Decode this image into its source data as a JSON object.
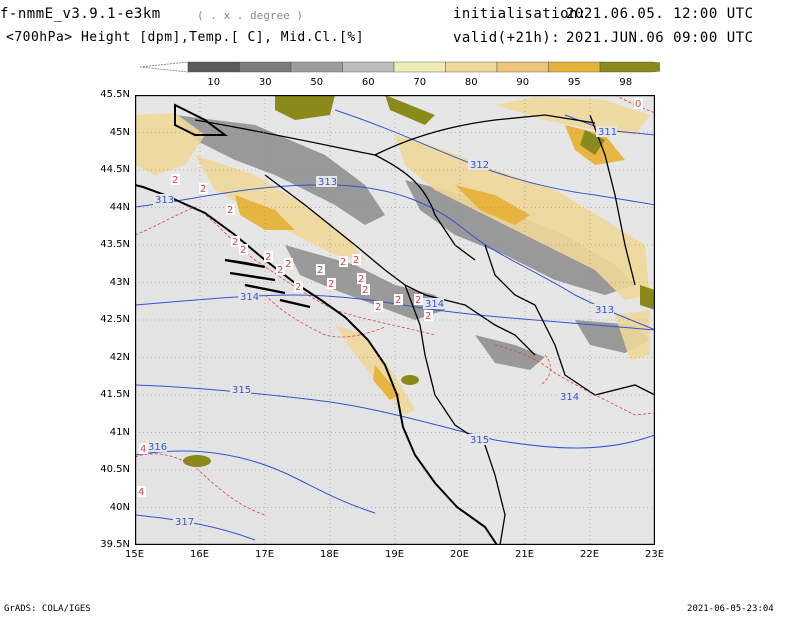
{
  "header": {
    "model_name": "f-nmmE_v3.9.1-e3km",
    "projection": "( . x . degree )",
    "variables": "<700hPa> Height [dpm],Temp.[ C], Mid.Cl.[%]",
    "init_label": "initialisation:",
    "init_time": "2021.06.05.  12:00 UTC",
    "valid_label": "valid(+21h):",
    "valid_time": "2021.JUN.06 09:00 UTC"
  },
  "colorbar": {
    "levels": [
      "10",
      "30",
      "50",
      "60",
      "70",
      "80",
      "90",
      "95",
      "98"
    ],
    "colors": [
      "#5a5a5a",
      "#7c7c7c",
      "#9e9e9e",
      "#bdbdbd",
      "#f0ecb8",
      "#efd89a",
      "#ecc57a",
      "#e6b33a",
      "#8a8a1a"
    ]
  },
  "map": {
    "lat_labels": [
      "45.5N",
      "45N",
      "44.5N",
      "44N",
      "43.5N",
      "43N",
      "42.5N",
      "42N",
      "41.5N",
      "41N",
      "40.5N",
      "40N",
      "39.5N"
    ],
    "lon_labels": [
      "15E",
      "16E",
      "17E",
      "18E",
      "19E",
      "20E",
      "21E",
      "22E",
      "23E"
    ],
    "height_contour_labels": [
      "311",
      "312",
      "313",
      "313",
      "314",
      "314",
      "313",
      "315",
      "314",
      "315",
      "316",
      "317"
    ],
    "temp_contour_labels": [
      "0",
      "2",
      "2",
      "2",
      "2",
      "2",
      "2",
      "2",
      "2",
      "2",
      "2",
      "2",
      "2",
      "2",
      "2",
      "2",
      "2",
      "2",
      "2",
      "2",
      "4",
      "4"
    ],
    "colors": {
      "sea": "#e3e3e3",
      "height_contour": "#2f55d4",
      "temp_contour": "#e04040",
      "border": "#000000"
    }
  },
  "footer": {
    "left": "GrADS: COLA/IGES",
    "right": "2021-06-05-23:04"
  }
}
